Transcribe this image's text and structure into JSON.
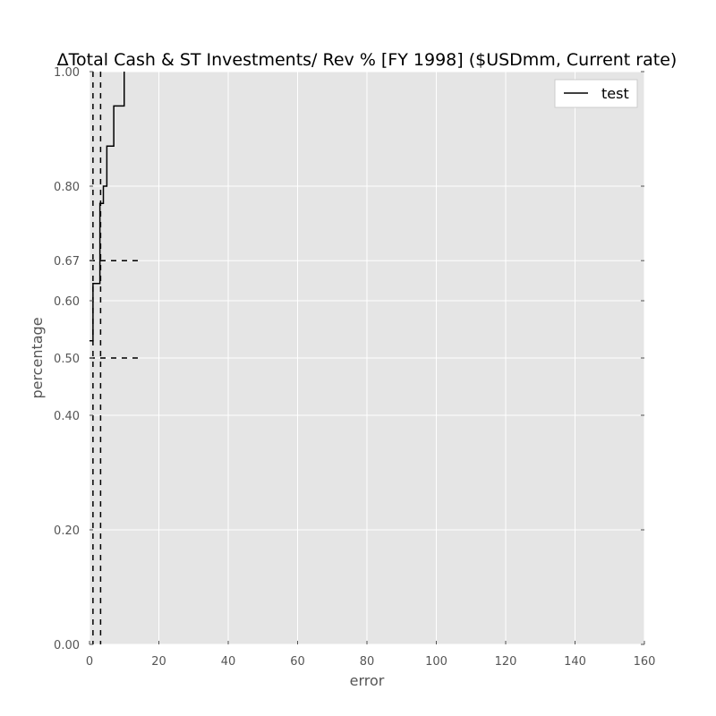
{
  "chart_data": {
    "type": "line",
    "title": "ΔTotal Cash & ST Investments/ Rev % [FY 1998] ($USDmm, Current rate)",
    "xlabel": "error",
    "ylabel": "percentage",
    "xlim": [
      0,
      160
    ],
    "ylim": [
      0,
      1
    ],
    "x_ticks": [
      0,
      20,
      40,
      60,
      80,
      100,
      120,
      140,
      160
    ],
    "x_tick_labels": [
      "0",
      "20",
      "40",
      "60",
      "80",
      "100",
      "120",
      "140",
      "160"
    ],
    "y_ticks": [
      0.0,
      0.2,
      0.4,
      0.5,
      0.6,
      0.67,
      0.8,
      1.0
    ],
    "y_tick_labels": [
      "0.00",
      "0.20",
      "0.40",
      "0.50",
      "0.60",
      "0.67",
      "0.80",
      "1.00"
    ],
    "grid": true,
    "legend_position": "top-right",
    "series": [
      {
        "name": "test",
        "color": "#000000",
        "step": true,
        "points": [
          [
            0.0,
            0.53
          ],
          [
            1.0,
            0.63
          ],
          [
            2.0,
            0.63
          ],
          [
            3.0,
            0.77
          ],
          [
            4.0,
            0.8
          ],
          [
            5.0,
            0.87
          ],
          [
            6.0,
            0.87
          ],
          [
            7.0,
            0.94
          ],
          [
            8.0,
            0.94
          ],
          [
            9.0,
            0.94
          ],
          [
            10.0,
            1.0
          ]
        ]
      }
    ],
    "reference_lines": {
      "vertical_x": [
        1.0,
        3.2
      ],
      "horizontal": [
        {
          "y": 0.67,
          "x_from": 0,
          "x_to": 15
        },
        {
          "y": 0.5,
          "x_from": 0,
          "x_to": 15
        }
      ],
      "style": "dashed",
      "color": "#000000"
    },
    "colors": {
      "plot_background": "#e5e5e5",
      "grid": "#ffffff",
      "tick_label": "#555555"
    }
  }
}
